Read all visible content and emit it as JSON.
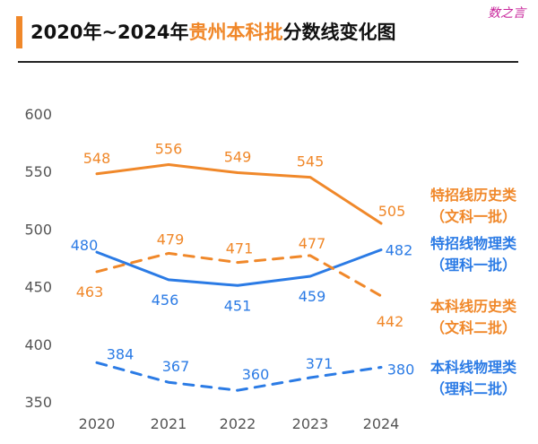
{
  "header": {
    "title_prefix": "2020年~2024年",
    "title_highlight": "贵州本科批",
    "title_suffix": "分数线变化图",
    "watermark": "数之言"
  },
  "colors": {
    "orange": "#F0882A",
    "blue": "#2B7BE5",
    "axis_text": "#555555"
  },
  "chart_data": {
    "type": "line",
    "title": "2020年~2024年贵州本科批分数线变化图",
    "x": [
      "2020",
      "2021",
      "2022",
      "2023",
      "2024"
    ],
    "ylim": [
      350,
      600
    ],
    "yticks": [
      600,
      550,
      500,
      450,
      400,
      350
    ],
    "xlabel": "",
    "ylabel": "",
    "grid": false,
    "series": [
      {
        "key": "tz_ls",
        "name_line1": "特招线历史类",
        "name_line2": "（文科一批）",
        "color": "orange",
        "dashed": false,
        "values": [
          548,
          556,
          549,
          545,
          505
        ]
      },
      {
        "key": "tz_wl",
        "name_line1": "特招线物理类",
        "name_line2": "（理科一批）",
        "color": "blue",
        "dashed": false,
        "values": [
          480,
          456,
          451,
          459,
          482
        ]
      },
      {
        "key": "bk_ls",
        "name_line1": "本科线历史类",
        "name_line2": "（文科二批）",
        "color": "orange",
        "dashed": true,
        "values": [
          463,
          479,
          471,
          477,
          442
        ]
      },
      {
        "key": "bk_wl",
        "name_line1": "本科线物理类",
        "name_line2": "（理科二批）",
        "color": "blue",
        "dashed": true,
        "values": [
          384,
          367,
          360,
          371,
          380
        ]
      }
    ]
  }
}
